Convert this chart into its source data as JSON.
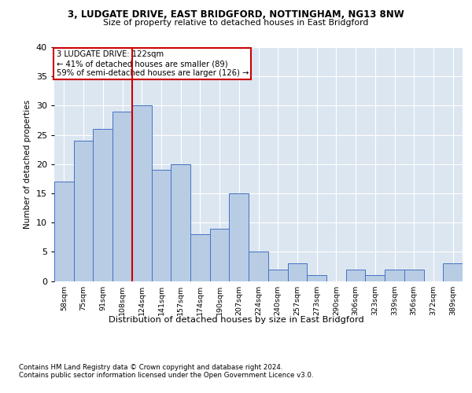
{
  "title": "3, LUDGATE DRIVE, EAST BRIDGFORD, NOTTINGHAM, NG13 8NW",
  "subtitle": "Size of property relative to detached houses in East Bridgford",
  "xlabel": "Distribution of detached houses by size in East Bridgford",
  "ylabel": "Number of detached properties",
  "categories": [
    "58sqm",
    "75sqm",
    "91sqm",
    "108sqm",
    "124sqm",
    "141sqm",
    "157sqm",
    "174sqm",
    "190sqm",
    "207sqm",
    "224sqm",
    "240sqm",
    "257sqm",
    "273sqm",
    "290sqm",
    "306sqm",
    "323sqm",
    "339sqm",
    "356sqm",
    "372sqm",
    "389sqm"
  ],
  "values": [
    17,
    24,
    26,
    29,
    30,
    19,
    20,
    8,
    9,
    15,
    5,
    2,
    3,
    1,
    0,
    2,
    1,
    2,
    2,
    0,
    3
  ],
  "bar_color": "#b8cce4",
  "bar_edge_color": "#4472c4",
  "property_label": "3 LUDGATE DRIVE: 122sqm",
  "annotation_line1": "← 41% of detached houses are smaller (89)",
  "annotation_line2": "59% of semi-detached houses are larger (126) →",
  "vline_x_index": 4,
  "vline_color": "#cc0000",
  "box_color": "#cc0000",
  "ylim": [
    0,
    40
  ],
  "yticks": [
    0,
    5,
    10,
    15,
    20,
    25,
    30,
    35,
    40
  ],
  "footnote1": "Contains HM Land Registry data © Crown copyright and database right 2024.",
  "footnote2": "Contains public sector information licensed under the Open Government Licence v3.0.",
  "background_color": "#dce6f1",
  "fig_background": "#ffffff"
}
